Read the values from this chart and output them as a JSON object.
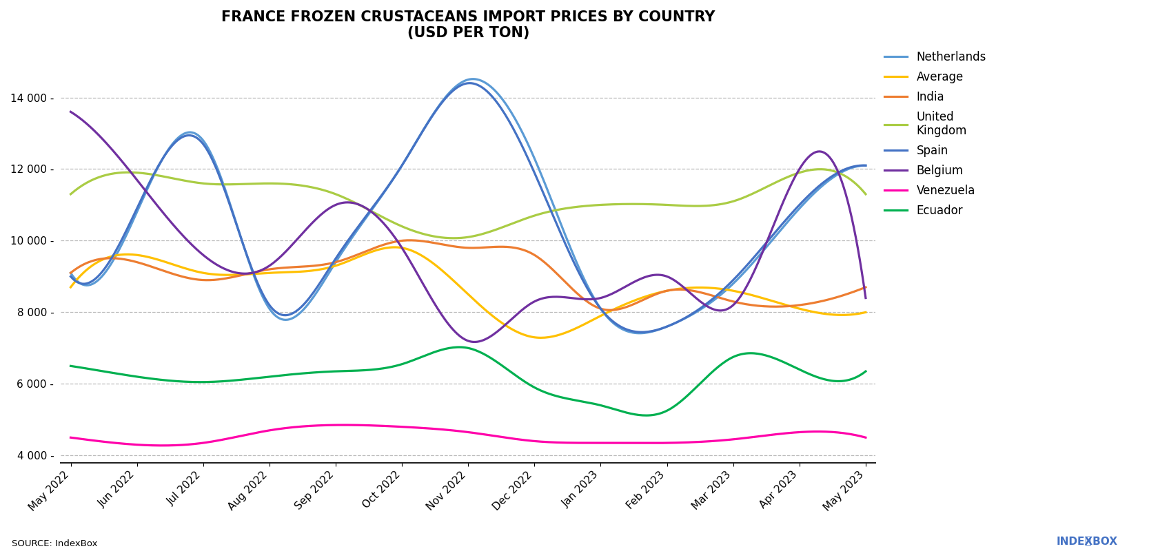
{
  "title": "FRANCE FROZEN CRUSTACEANS IMPORT PRICES BY COUNTRY\n(USD PER TON)",
  "x_labels": [
    "May 2022",
    "Jun 2022",
    "Jul 2022",
    "Aug 2022",
    "Sep 2022",
    "Oct 2022",
    "Nov 2022",
    "Dec 2022",
    "Jan 2023",
    "Feb 2023",
    "Mar 2023",
    "Apr 2023",
    "May 2023"
  ],
  "series": {
    "Netherlands": {
      "color": "#5B9BD5",
      "data": [
        9100,
        10800,
        12800,
        8100,
        9400,
        12100,
        14500,
        12300,
        8100,
        7600,
        8800,
        10900,
        12100
      ]
    },
    "Average": {
      "color": "#FFC000",
      "data": [
        8700,
        9600,
        9100,
        9100,
        9300,
        9800,
        8500,
        7300,
        7900,
        8600,
        8600,
        8100,
        8000
      ]
    },
    "India": {
      "color": "#ED7D31",
      "data": [
        9100,
        9400,
        8900,
        9200,
        9400,
        10000,
        9800,
        9600,
        8100,
        8600,
        8300,
        8200,
        8700
      ]
    },
    "United Kingdom": {
      "color": "#AACC44",
      "data": [
        11300,
        11900,
        11600,
        11600,
        11300,
        10400,
        10100,
        10700,
        11000,
        11000,
        11100,
        11900,
        11300
      ]
    },
    "Spain": {
      "color": "#4472C4",
      "data": [
        9000,
        10900,
        12700,
        8200,
        9500,
        12100,
        14400,
        11900,
        8100,
        7600,
        8900,
        11000,
        12100
      ]
    },
    "Belgium": {
      "color": "#7030A0",
      "data": [
        13600,
        11700,
        9600,
        9300,
        11000,
        9800,
        7200,
        8300,
        8400,
        9000,
        8200,
        12000,
        8400
      ]
    },
    "Venezuela": {
      "color": "#FF00AA",
      "data": [
        4500,
        4300,
        4350,
        4700,
        4850,
        4800,
        4650,
        4400,
        4350,
        4350,
        4450,
        4650,
        4500
      ]
    },
    "Ecuador": {
      "color": "#00B050",
      "data": [
        6500,
        6200,
        6050,
        6200,
        6350,
        6550,
        7000,
        5900,
        5400,
        5250,
        6750,
        6400,
        6350
      ]
    }
  },
  "ylim": [
    3800,
    15200
  ],
  "yticks": [
    4000,
    6000,
    8000,
    10000,
    12000,
    14000
  ],
  "source_text": "SOURCE: IndexBox",
  "background_color": "#FFFFFF",
  "grid_color": "#BBBBBB",
  "legend_order": [
    "Netherlands",
    "Average",
    "India",
    "United Kingdom",
    "Spain",
    "Belgium",
    "Venezuela",
    "Ecuador"
  ]
}
